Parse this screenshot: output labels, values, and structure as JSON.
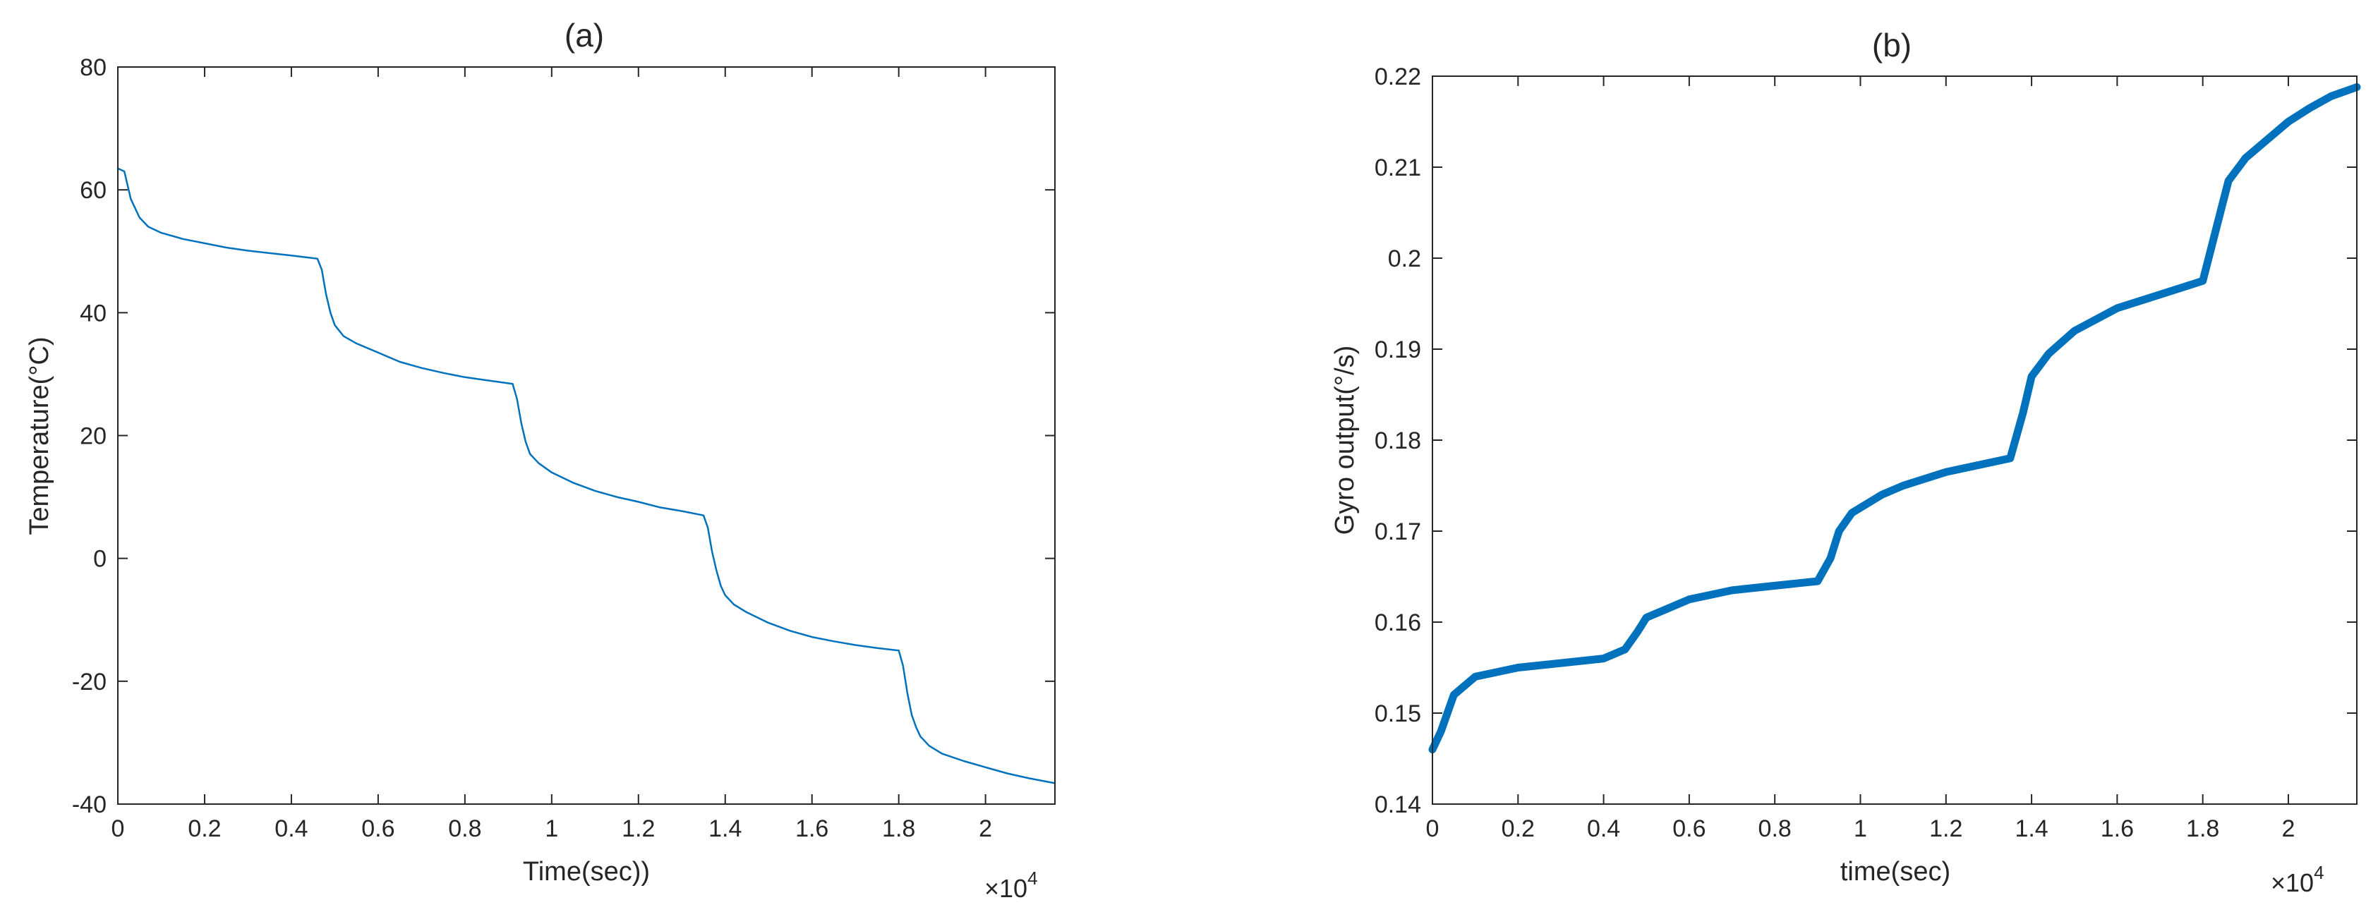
{
  "colors": {
    "line": "#0072bd",
    "axis": "#262626",
    "background": "#ffffff"
  },
  "panels": [
    {
      "title": "(a)",
      "xlabel": "Time(sec))",
      "ylabel": "Temperature(°C)",
      "x_multiplier": "×10",
      "x_multiplier_exp": "4",
      "xticklabels": [
        "0",
        "0.2",
        "0.4",
        "0.6",
        "0.8",
        "1",
        "1.2",
        "1.4",
        "1.6",
        "1.8",
        "2"
      ],
      "yticklabels": [
        "-40",
        "-20",
        "0",
        "20",
        "40",
        "60",
        "80"
      ]
    },
    {
      "title": "(b)",
      "xlabel": "time(sec)",
      "ylabel": "Gyro output(°/s)",
      "x_multiplier": "×10",
      "x_multiplier_exp": "4",
      "xticklabels": [
        "0",
        "0.2",
        "0.4",
        "0.6",
        "0.8",
        "1",
        "1.2",
        "1.4",
        "1.6",
        "1.8",
        "2"
      ],
      "yticklabels": [
        "0.14",
        "0.15",
        "0.16",
        "0.17",
        "0.18",
        "0.19",
        "0.2",
        "0.21",
        "0.22"
      ]
    }
  ],
  "chart_data": [
    {
      "type": "line",
      "title": "(a)",
      "xlabel": "Time(sec))",
      "ylabel": "Temperature(°C)",
      "xlim": [
        0,
        21600
      ],
      "ylim": [
        -40,
        80
      ],
      "xticks": [
        0,
        2000,
        4000,
        6000,
        8000,
        10000,
        12000,
        14000,
        16000,
        18000,
        20000
      ],
      "yticks": [
        -40,
        -20,
        0,
        20,
        40,
        60,
        80
      ],
      "grid": false,
      "series": [
        {
          "x": [
            0,
            150,
            300,
            500,
            700,
            1000,
            1500,
            2000,
            2500,
            3000,
            3500,
            4000,
            4600,
            4700,
            4800,
            4900,
            5000,
            5200,
            5500,
            6000,
            6500,
            7000,
            7500,
            8000,
            8500,
            9100,
            9200,
            9300,
            9400,
            9500,
            9700,
            10000,
            10500,
            11000,
            11500,
            12000,
            12500,
            13000,
            13500,
            13600,
            13700,
            13800,
            13900,
            14000,
            14200,
            14500,
            15000,
            15500,
            16000,
            16500,
            17000,
            17500,
            18000,
            18100,
            18200,
            18300,
            18400,
            18500,
            18700,
            19000,
            19500,
            20000,
            20500,
            21000,
            21600
          ],
          "y": [
            63.5,
            63,
            58.5,
            55.5,
            54,
            53,
            52,
            51.3,
            50.6,
            50.1,
            49.7,
            49.3,
            48.8,
            47,
            43,
            40,
            38,
            36.2,
            35,
            33.5,
            32,
            31,
            30.2,
            29.5,
            29,
            28.4,
            26,
            22,
            19,
            17,
            15.5,
            14,
            12.3,
            11,
            10,
            9.2,
            8.3,
            7.7,
            7,
            5,
            1,
            -2,
            -4.5,
            -6,
            -7.5,
            -8.8,
            -10.5,
            -11.8,
            -12.8,
            -13.5,
            -14.1,
            -14.6,
            -15,
            -17.5,
            -22,
            -25.5,
            -27.5,
            -29,
            -30.5,
            -31.8,
            -33,
            -34,
            -35,
            -35.8,
            -36.6
          ]
        }
      ]
    },
    {
      "type": "line",
      "title": "(b)",
      "xlabel": "time(sec)",
      "ylabel": "Gyro output(°/s)",
      "xlim": [
        0,
        21600
      ],
      "ylim": [
        0.14,
        0.22
      ],
      "xticks": [
        0,
        2000,
        4000,
        6000,
        8000,
        10000,
        12000,
        14000,
        16000,
        18000,
        20000
      ],
      "yticks": [
        0.14,
        0.15,
        0.16,
        0.17,
        0.18,
        0.19,
        0.2,
        0.21,
        0.22
      ],
      "grid": false,
      "series": [
        {
          "x": [
            0,
            200,
            500,
            1000,
            2000,
            3000,
            4000,
            4500,
            4800,
            5000,
            5500,
            6000,
            7000,
            8000,
            9000,
            9300,
            9500,
            9800,
            10500,
            11000,
            12000,
            13000,
            13500,
            13800,
            14000,
            14400,
            15000,
            16000,
            17000,
            18000,
            18300,
            18600,
            19000,
            19500,
            20000,
            20500,
            21000,
            21600
          ],
          "y": [
            0.146,
            0.148,
            0.152,
            0.154,
            0.155,
            0.1555,
            0.156,
            0.157,
            0.159,
            0.1605,
            0.1615,
            0.1625,
            0.1635,
            0.164,
            0.1645,
            0.167,
            0.17,
            0.172,
            0.174,
            0.175,
            0.1765,
            0.1775,
            0.178,
            0.183,
            0.187,
            0.1895,
            0.192,
            0.1945,
            0.196,
            0.1975,
            0.203,
            0.2085,
            0.211,
            0.213,
            0.215,
            0.2165,
            0.2178,
            0.2188
          ]
        }
      ]
    }
  ]
}
